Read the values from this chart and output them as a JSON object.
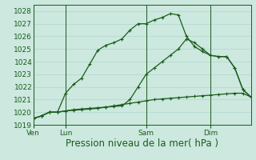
{
  "title": "Pression niveau de la mer( hPa )",
  "bg_color": "#cce8df",
  "grid_color": "#a8d4c8",
  "line_color": "#1a5c1a",
  "ylim": [
    1019,
    1028.5
  ],
  "yticks": [
    1019,
    1020,
    1021,
    1022,
    1023,
    1024,
    1025,
    1026,
    1027,
    1028
  ],
  "xtick_labels": [
    "Ven",
    "Lun",
    "Sam",
    "Dim"
  ],
  "xtick_positions": [
    0,
    4,
    14,
    22
  ],
  "vline_positions": [
    0,
    4,
    14,
    22
  ],
  "xlim": [
    0,
    27
  ],
  "series1_x": [
    0,
    1,
    2,
    3,
    4,
    5,
    6,
    7,
    8,
    9,
    10,
    11,
    12,
    13,
    14,
    15,
    16,
    17,
    18,
    19,
    20,
    21,
    22,
    23,
    24,
    25,
    26,
    27
  ],
  "series1_y": [
    1019.5,
    1019.7,
    1020.0,
    1020.0,
    1021.5,
    1022.2,
    1022.7,
    1023.8,
    1024.9,
    1025.3,
    1025.5,
    1025.8,
    1026.5,
    1027.0,
    1027.0,
    1027.3,
    1027.5,
    1027.8,
    1027.7,
    1026.0,
    1025.2,
    1024.8,
    1024.5,
    1024.4,
    1024.4,
    1023.5,
    1021.8,
    1021.2
  ],
  "series2_x": [
    0,
    1,
    2,
    3,
    4,
    5,
    6,
    7,
    8,
    9,
    10,
    11,
    12,
    13,
    14,
    15,
    16,
    17,
    18,
    19,
    20,
    21,
    22,
    23,
    24,
    25,
    26,
    27
  ],
  "series2_y": [
    1019.5,
    1019.7,
    1020.0,
    1020.0,
    1020.1,
    1020.15,
    1020.2,
    1020.25,
    1020.3,
    1020.4,
    1020.5,
    1020.6,
    1020.7,
    1020.8,
    1020.9,
    1021.0,
    1021.05,
    1021.1,
    1021.15,
    1021.2,
    1021.25,
    1021.3,
    1021.35,
    1021.4,
    1021.45,
    1021.5,
    1021.5,
    1021.2
  ],
  "series3_x": [
    0,
    1,
    2,
    3,
    4,
    5,
    6,
    7,
    8,
    9,
    10,
    11,
    12,
    13,
    14,
    15,
    16,
    17,
    18,
    19,
    20,
    21,
    22,
    23,
    24,
    25,
    26,
    27
  ],
  "series3_y": [
    1019.5,
    1019.7,
    1020.0,
    1020.0,
    1020.1,
    1020.2,
    1020.25,
    1020.3,
    1020.35,
    1020.4,
    1020.45,
    1020.5,
    1021.0,
    1022.0,
    1023.0,
    1023.5,
    1024.0,
    1024.5,
    1025.0,
    1025.8,
    1025.5,
    1025.0,
    1024.5,
    1024.4,
    1024.4,
    1023.5,
    1021.8,
    1021.2
  ],
  "tick_fontsize": 6.5,
  "title_fontsize": 8.5,
  "marker_size": 3,
  "linewidth": 0.9
}
